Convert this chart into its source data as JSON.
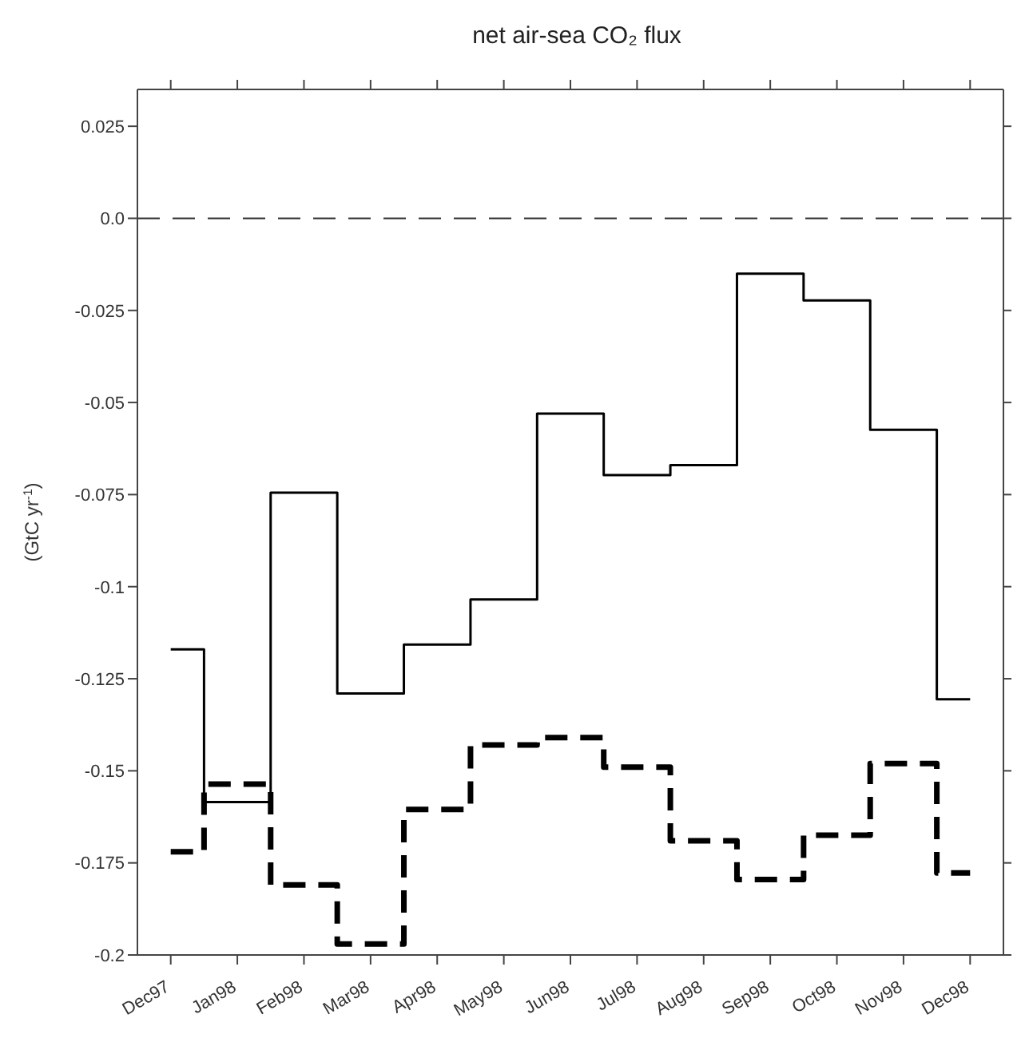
{
  "chart_data": {
    "type": "step",
    "title": "net air-sea CO₂ flux",
    "ylabel": "(GtC yr$^{-1}$)",
    "categories": [
      "Dec97",
      "Jan98",
      "Feb98",
      "Mar98",
      "Apr98",
      "May98",
      "Jun98",
      "Jul98",
      "Aug98",
      "Sep98",
      "Oct98",
      "Nov98",
      "Dec98"
    ],
    "series": [
      {
        "color": "#000000",
        "line_style": "solid",
        "values": [
          -0.117,
          -0.1585,
          -0.0745,
          -0.129,
          -0.1157,
          -0.1035,
          -0.053,
          -0.0697,
          -0.067,
          -0.015,
          -0.0223,
          -0.0574,
          -0.1306
        ]
      },
      {
        "color": "#000000",
        "line_style": "dashed",
        "values": [
          -0.172,
          -0.1536,
          -0.181,
          -0.197,
          -0.1605,
          -0.143,
          -0.141,
          -0.149,
          -0.169,
          -0.1795,
          -0.1675,
          -0.148,
          -0.1777
        ]
      }
    ],
    "ylim": [
      -0.2,
      0.035
    ],
    "yticks": [
      0.025,
      {
        "value": 0,
        "label": "0.0"
      },
      -0.025,
      -0.05,
      -0.075,
      -0.1,
      -0.125,
      -0.15,
      -0.175,
      -0.2
    ],
    "ref_lines": [
      {
        "axis": "y",
        "value": 0,
        "line_style": "dashed",
        "color": "#333333"
      }
    ],
    "grid": false,
    "marker": "none"
  }
}
